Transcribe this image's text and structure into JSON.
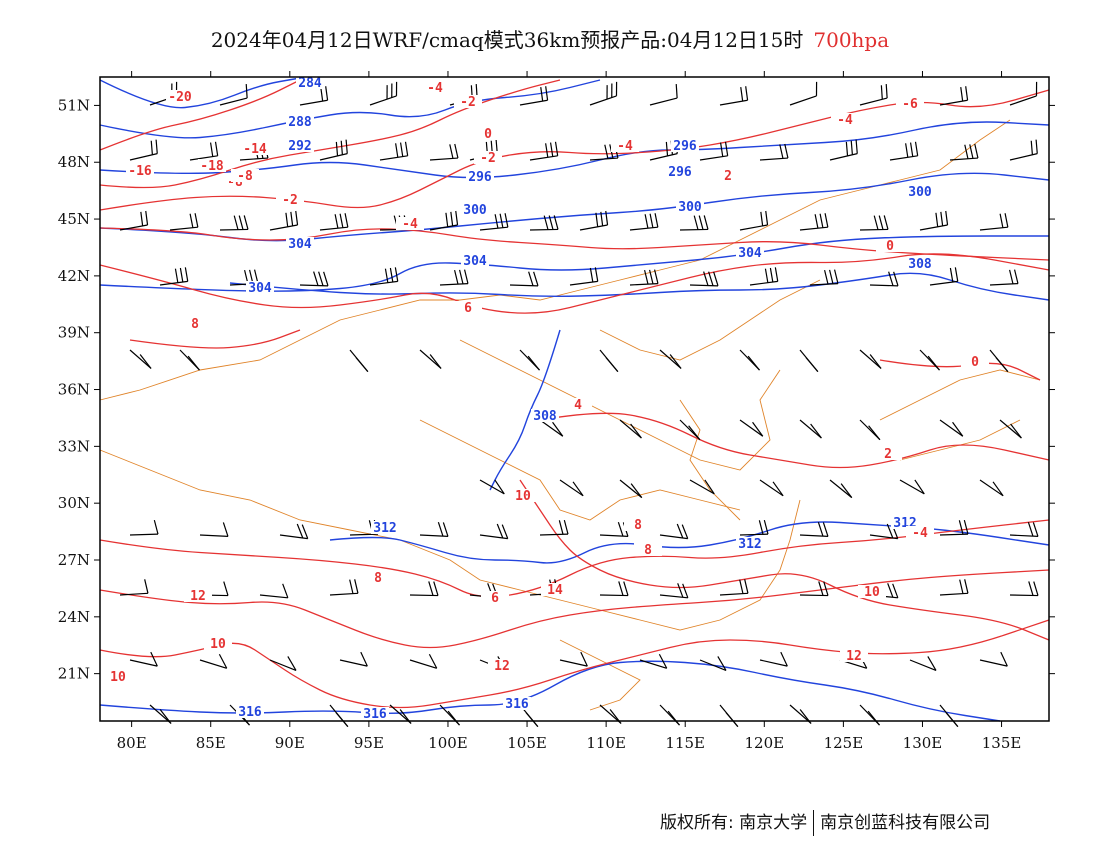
{
  "title": {
    "main": "2024年04月12日WRF/cmaq模式36km预报产品:04月12日15时",
    "level": "700hpa"
  },
  "colors": {
    "temperature": "#e53333",
    "height": "#2244dd",
    "border": "#e0842a",
    "wind": "#000000",
    "frame": "#000000"
  },
  "axes": {
    "lon_ticks": [
      "80E",
      "85E",
      "90E",
      "95E",
      "100E",
      "105E",
      "110E",
      "115E",
      "120E",
      "125E",
      "130E",
      "135E"
    ],
    "lat_ticks": [
      "51N",
      "48N",
      "45N",
      "42N",
      "39N",
      "36N",
      "33N",
      "30N",
      "27N",
      "24N",
      "21N"
    ],
    "lon_range": [
      78,
      138
    ],
    "lat_range": [
      18.5,
      52.5
    ]
  },
  "height_labels": [
    "284",
    "288",
    "292",
    "296",
    "296",
    "296",
    "300",
    "300",
    "300",
    "304",
    "304",
    "304",
    "304",
    "308",
    "308",
    "312",
    "312",
    "312",
    "316",
    "316",
    "316"
  ],
  "temperature_labels": [
    "-20",
    "-16",
    "-18",
    "-14",
    "-8",
    "-8",
    "-4",
    "-4",
    "-4",
    "-2",
    "-2",
    "-2",
    "0",
    "0",
    "0",
    "-6",
    "-4",
    "2",
    "2",
    "4",
    "6",
    "8",
    "8",
    "8",
    "10",
    "10",
    "10",
    "12",
    "12",
    "12",
    "14",
    "6",
    "8",
    "10",
    "-4"
  ],
  "footer": {
    "left": "版权所有: 南京大学",
    "right": "南京创蓝科技有限公司"
  }
}
